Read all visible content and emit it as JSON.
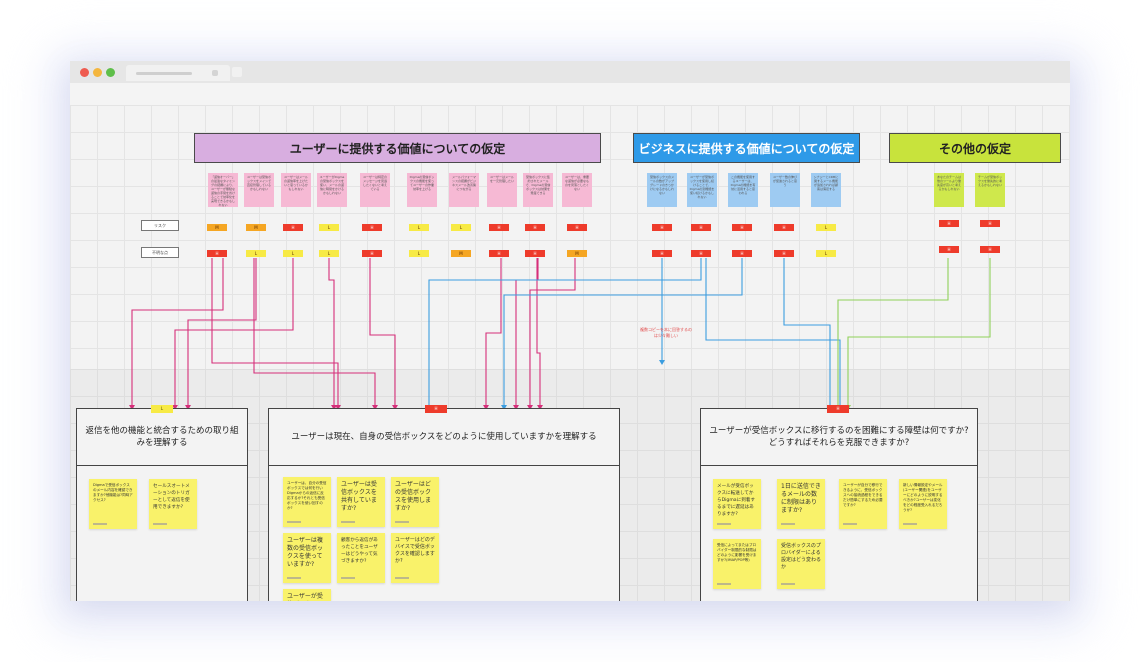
{
  "headers": {
    "user_value": "ユーザーに提供する価値についての仮定",
    "business_value": "ビジネスに提供する価値についての仮定",
    "other": "その他の仮定"
  },
  "row_labels": {
    "risk": "リスク",
    "uncertainty": "不明な点"
  },
  "colors": {
    "user": "#d8aee0",
    "business": "#2e9ae8",
    "other": "#c8e33c",
    "pink_line": "#d62f7a",
    "blue_line": "#3b9de0",
    "green_line": "#8fd15a"
  },
  "sticky_notes": {
    "user": [
      "「返信オーバー」の最適なタイミングの把握により、ユーザーが無駄な返信の手間を省けることで効率化を実現できるかもしれない",
      "ユーザーは受信ボックスをメインで直接管理しているかもしれない",
      "ユーザーはメールの返信率を上げたいと思っているかもしれない",
      "ユーザーがDigmaの受信ボックスを使い、メールの返信に時間をかけるかもしれない",
      "ユーザーは特定のメッセージを見逃したくないと考えている",
      "Digmaの受信ボックスの機能を使ってユーザーの作業効率を上げる",
      "メールパフォーマンスの把握がビジネスメール改善策につながる",
      "ユーザーはメールを一元管理したい",
      "受信ボックスに集約されたメールで、Digmaの受信ボックスは効果を発揮できる",
      "ユーザーは、重要な返信が必要なものを見落としたくない"
    ],
    "business": [
      "受信ボックスのメールの数がアップグレードのきっかけになるかもしれない",
      "ユーザーが受信ボックスを使用し続けることで、Digmaの別機能を使い続けるかもしれない",
      "この機能を使用するユーザーは、Digmaの機能を有効に活用すると思われる",
      "ユーザー数の伸びが促進されると思う",
      "シナジーとCRMに関するメール機能が追加されれば顧客は満足する"
    ],
    "other": [
      "あなたのチームは他のツールより優先度が高いと考えるかもしれない",
      "チームが受信ボックスを優先的に考えるかもしれない"
    ]
  },
  "risk_tags": {
    "user": [
      "M",
      "M",
      "H",
      "L",
      "H",
      "L",
      "L",
      "H",
      "H",
      "H"
    ],
    "business": [
      "H",
      "H",
      "H",
      "H",
      "L"
    ],
    "other": [
      "H",
      "H"
    ]
  },
  "uncertainty_tags": {
    "user": [
      "H",
      "L",
      "L",
      "L",
      "H",
      "L",
      "M",
      "H",
      "H",
      "M"
    ],
    "business": [
      "H",
      "H",
      "H",
      "H",
      "L"
    ],
    "other": [
      "H",
      "H"
    ]
  },
  "annotation": "複数コピーを本に回答するのは少々難しい",
  "frames": [
    {
      "tag": "L",
      "title": "返信を他の機能と統合するための取り組みを理解する",
      "notes": [
        "Digmaで受信ボックスのメール内容を確認できますか?他機能は?同時アクセス?",
        "セールスオートメーションのトリガーとして返信を使用できますか?"
      ]
    },
    {
      "tag": "H",
      "title": "ユーザーは現在、自身の受信ボックスをどのように使用していますかを理解する",
      "notes": [
        "ユーザーは、自分の受信ボックスでは何を行いDigmaからの返信に反応するか?それとも受信ボックスを使い回すのか?",
        "ユーザーは受信ボックスを共有していますか?",
        "ユーザーはどの受信ボックスを使用しますか?",
        "ユーザーは複数の受信ボックスを使っていますか?",
        "顧客から返信があったことをユーザーはどうやって気づきますか?",
        "ユーザーはどのデバイスで受信ボックスを確認しますか?",
        "ユーザーが受信ボックスを…"
      ]
    },
    {
      "tag": "H",
      "title": "ユーザーが受信ボックスに移行するのを困難にする障壁は何ですか? どうすればそれらを克服できますか?",
      "notes": [
        "メールが受信ボックスに転送してからDigmaに到着するまでに遅延はありますか?",
        "1日に送信できるメールの数に制限はありますか?",
        "ユーザーが自分で移行できるように、受信ボックスへの接続過程をできるだけ簡単にするため必要ですか?",
        "新しい情報設定やメール(ユーザー関連)をユーザーにどのように説明するべきか?ユーザーは変化をどの程度受入れるだろうか?",
        "受信によってまたはプロバイダー制限的な制限はどのように影響を受けますか?(IMAP/POP等)",
        "受信ボックスのプロバイダーによる設定はどう変わるか"
      ]
    }
  ]
}
